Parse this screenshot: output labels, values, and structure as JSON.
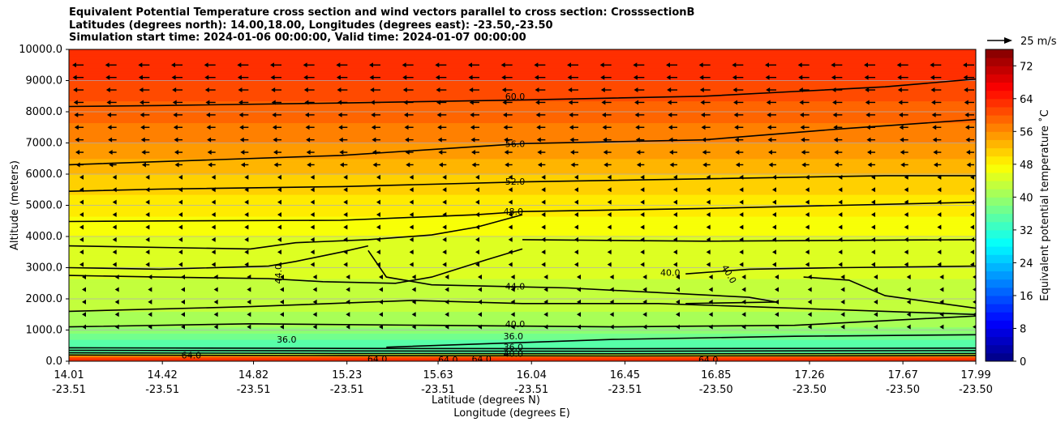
{
  "title_lines": [
    "Equivalent Potential Temperature cross section and wind vectors parallel to cross section: CrosssectionB",
    "Latitudes (degrees north): 14.00,18.00, Longitudes (degrees east): -23.50,-23.50",
    "Simulation start time: 2024-01-06 00:00:00, Valid time: 2024-01-07 00:00:00"
  ],
  "chart_data": {
    "type": "contourf",
    "ylabel": "Altitude (meters)",
    "xlabel_line1": "Latitude (degrees N)",
    "xlabel_line2": "Longitude (degrees E)",
    "ylim": [
      0,
      10000
    ],
    "xlim": [
      14.01,
      17.99
    ],
    "y_ticks": [
      "0.0",
      "1000.0",
      "2000.0",
      "3000.0",
      "4000.0",
      "5000.0",
      "6000.0",
      "7000.0",
      "8000.0",
      "9000.0",
      "10000.0"
    ],
    "x_ticks": [
      {
        "lat": "14.01",
        "lon": "-23.51"
      },
      {
        "lat": "14.42",
        "lon": "-23.51"
      },
      {
        "lat": "14.82",
        "lon": "-23.51"
      },
      {
        "lat": "15.23",
        "lon": "-23.51"
      },
      {
        "lat": "15.63",
        "lon": "-23.51"
      },
      {
        "lat": "16.04",
        "lon": "-23.51"
      },
      {
        "lat": "16.45",
        "lon": "-23.51"
      },
      {
        "lat": "16.85",
        "lon": "-23.50"
      },
      {
        "lat": "17.26",
        "lon": "-23.50"
      },
      {
        "lat": "17.67",
        "lon": "-23.50"
      },
      {
        "lat": "17.99",
        "lon": "-23.50"
      }
    ],
    "theta_e_profile": [
      {
        "z": 0,
        "v": 64
      },
      {
        "z": 150,
        "v": 60
      },
      {
        "z": 250,
        "v": 36
      },
      {
        "z": 450,
        "v": 34
      },
      {
        "z": 800,
        "v": 37
      },
      {
        "z": 1200,
        "v": 41
      },
      {
        "z": 2000,
        "v": 43
      },
      {
        "z": 3000,
        "v": 44.5
      },
      {
        "z": 4000,
        "v": 46
      },
      {
        "z": 5000,
        "v": 49
      },
      {
        "z": 6000,
        "v": 52
      },
      {
        "z": 7000,
        "v": 56
      },
      {
        "z": 8000,
        "v": 59
      },
      {
        "z": 9000,
        "v": 62
      },
      {
        "z": 10000,
        "v": 63
      }
    ],
    "contours": [
      {
        "label": "60.0",
        "points": [
          [
            0,
            8170
          ],
          [
            0.1,
            8200
          ],
          [
            0.3,
            8280
          ],
          [
            0.5,
            8380
          ],
          [
            0.7,
            8500
          ],
          [
            0.8,
            8650
          ],
          [
            0.9,
            8800
          ],
          [
            1,
            9050
          ]
        ]
      },
      {
        "label": "56.0",
        "points": [
          [
            0,
            6300
          ],
          [
            0.1,
            6400
          ],
          [
            0.3,
            6600
          ],
          [
            0.5,
            6980
          ],
          [
            0.7,
            7100
          ],
          [
            0.85,
            7450
          ],
          [
            1,
            7750
          ]
        ]
      },
      {
        "label": "52.0",
        "points": [
          [
            0,
            5450
          ],
          [
            0.1,
            5520
          ],
          [
            0.3,
            5600
          ],
          [
            0.5,
            5750
          ],
          [
            0.7,
            5850
          ],
          [
            0.9,
            5950
          ],
          [
            1,
            5950
          ]
        ]
      },
      {
        "label": "48.0",
        "points": [
          [
            0,
            4480
          ],
          [
            0.1,
            4500
          ],
          [
            0.3,
            4520
          ],
          [
            0.45,
            4700
          ],
          [
            0.5,
            4800
          ],
          [
            0.7,
            4900
          ],
          [
            1,
            5100
          ]
        ]
      },
      {
        "label": "",
        "points": [
          [
            0,
            3700
          ],
          [
            0.2,
            3600
          ],
          [
            0.25,
            3800
          ],
          [
            0.33,
            3900
          ],
          [
            0.4,
            4050
          ],
          [
            0.45,
            4300
          ],
          [
            0.5,
            4700
          ]
        ]
      },
      {
        "label": "",
        "points": [
          [
            0.5,
            3900
          ],
          [
            0.7,
            3850
          ],
          [
            1,
            3900
          ]
        ]
      },
      {
        "label": "44.0",
        "points": [
          [
            0,
            2750
          ],
          [
            0.1,
            2700
          ],
          [
            0.22,
            2650
          ],
          [
            0.28,
            2550
          ],
          [
            0.36,
            2500
          ],
          [
            0.4,
            2700
          ],
          [
            0.46,
            3250
          ],
          [
            0.5,
            3600
          ]
        ]
      },
      {
        "label": "",
        "points": [
          [
            0,
            3000
          ],
          [
            0.1,
            2950
          ],
          [
            0.22,
            3050
          ],
          [
            0.25,
            3200
          ],
          [
            0.3,
            3500
          ],
          [
            0.33,
            3700
          ]
        ]
      },
      {
        "label": "44.0",
        "points": [
          [
            0.33,
            3550
          ],
          [
            0.35,
            2700
          ],
          [
            0.4,
            2450
          ],
          [
            0.55,
            2350
          ],
          [
            0.75,
            2050
          ],
          [
            0.78,
            1900
          ],
          [
            0.68,
            1850
          ]
        ]
      },
      {
        "label": "40.0",
        "points": [
          [
            0.68,
            2800
          ],
          [
            0.75,
            2950
          ],
          [
            0.85,
            3000
          ],
          [
            1,
            3050
          ]
        ]
      },
      {
        "label": "40.0",
        "points": [
          [
            0.81,
            2700
          ],
          [
            0.86,
            2600
          ],
          [
            0.9,
            2100
          ],
          [
            1,
            1700
          ]
        ]
      },
      {
        "label": "",
        "points": [
          [
            0,
            1600
          ],
          [
            0.2,
            1750
          ],
          [
            0.38,
            1950
          ],
          [
            0.5,
            1850
          ],
          [
            0.65,
            1850
          ],
          [
            0.8,
            1700
          ],
          [
            1,
            1500
          ]
        ]
      },
      {
        "label": "40.0",
        "points": [
          [
            0,
            1100
          ],
          [
            0.2,
            1200
          ],
          [
            0.4,
            1150
          ],
          [
            0.6,
            1100
          ],
          [
            0.8,
            1150
          ],
          [
            1,
            1450
          ]
        ]
      },
      {
        "label": "36.0",
        "points": [
          [
            0.35,
            450
          ],
          [
            0.5,
            600
          ],
          [
            0.6,
            700
          ],
          [
            0.8,
            800
          ],
          [
            1,
            850
          ]
        ]
      },
      {
        "label": "",
        "points": [
          [
            0,
            430
          ],
          [
            0.3,
            410
          ],
          [
            0.6,
            400
          ],
          [
            1,
            420
          ]
        ]
      },
      {
        "label": "",
        "points": [
          [
            0,
            350
          ],
          [
            0.3,
            330
          ],
          [
            0.6,
            320
          ],
          [
            1,
            340
          ]
        ]
      },
      {
        "label": "",
        "points": [
          [
            0,
            270
          ],
          [
            0.3,
            250
          ],
          [
            0.6,
            240
          ],
          [
            1,
            250
          ]
        ]
      },
      {
        "label": "",
        "points": [
          [
            0,
            200
          ],
          [
            0.3,
            180
          ],
          [
            0.6,
            170
          ],
          [
            1,
            180
          ]
        ]
      }
    ],
    "inline_labels": [
      {
        "text": "60.0",
        "x": 0.492,
        "y": 8500,
        "rot": 0
      },
      {
        "text": "56.0",
        "x": 0.492,
        "y": 6980,
        "rot": 0
      },
      {
        "text": "52.0",
        "x": 0.492,
        "y": 5770,
        "rot": 0
      },
      {
        "text": "48.0",
        "x": 0.49,
        "y": 4800,
        "rot": 0
      },
      {
        "text": "44.0",
        "x": 0.231,
        "y": 2800,
        "rot": -90
      },
      {
        "text": "44.0",
        "x": 0.492,
        "y": 2400,
        "rot": 0
      },
      {
        "text": "40.0",
        "x": 0.663,
        "y": 2850,
        "rot": 0
      },
      {
        "text": "40.0",
        "x": 0.728,
        "y": 2800,
        "rot": 60
      },
      {
        "text": "40.0",
        "x": 0.492,
        "y": 1200,
        "rot": 0
      },
      {
        "text": "36.0",
        "x": 0.24,
        "y": 700,
        "rot": 0
      },
      {
        "text": "36.0",
        "x": 0.49,
        "y": 800,
        "rot": 0
      },
      {
        "text": "36.0",
        "x": 0.49,
        "y": 450,
        "rot": 0
      },
      {
        "text": "40.0",
        "x": 0.49,
        "y": 250,
        "rot": 0
      },
      {
        "text": "64.0",
        "x": 0.135,
        "y": 200,
        "rot": 0
      },
      {
        "text": "64.0",
        "x": 0.34,
        "y": 80,
        "rot": 0
      },
      {
        "text": "64.0",
        "x": 0.418,
        "y": 50,
        "rot": 0
      },
      {
        "text": "64.0",
        "x": 0.455,
        "y": 80,
        "rot": 0
      },
      {
        "text": "64.0",
        "x": 0.705,
        "y": 50,
        "rot": 0
      }
    ],
    "wind_key": {
      "label": "25 m/s"
    },
    "colorbar": {
      "label": "Equivalent potential temperature ˚C",
      "min": 0,
      "max": 76,
      "step": 2,
      "ticks": [
        "0",
        "8",
        "16",
        "24",
        "32",
        "40",
        "48",
        "56",
        "64",
        "72"
      ]
    }
  }
}
